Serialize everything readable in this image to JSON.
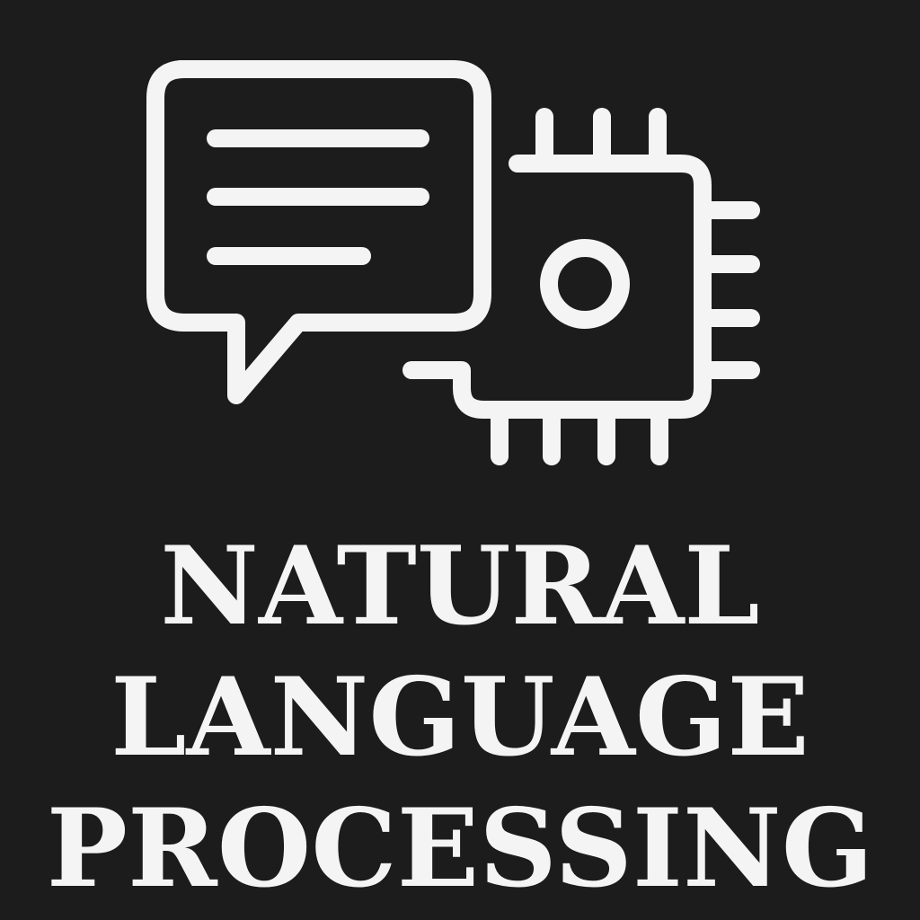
{
  "colors": {
    "background": "#1c1c1c",
    "foreground": "#f4f4f4"
  },
  "icons": {
    "speech": "chat-bubble-icon",
    "chip": "microchip-icon"
  },
  "title": {
    "line1": "NATURAL",
    "line2": "LANGUAGE",
    "line3": "PROCESSING"
  }
}
